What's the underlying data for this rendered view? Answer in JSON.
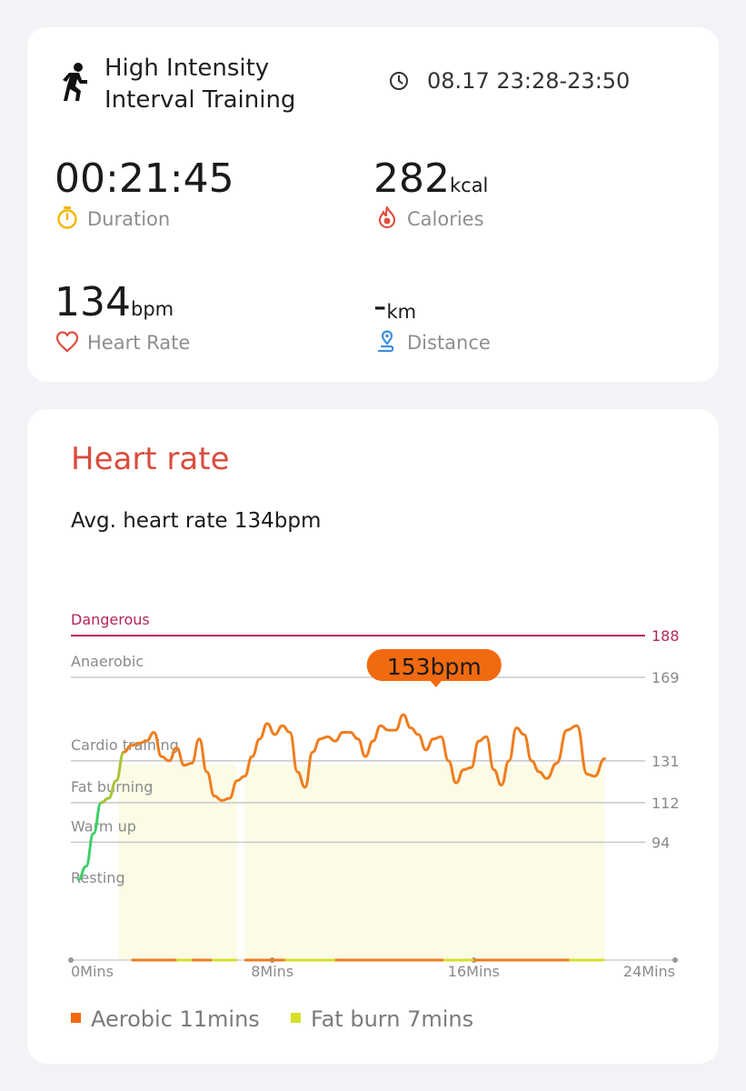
{
  "summary": {
    "workout_name": "High Intensity Interval Training",
    "time_range": "08.17 23:28-23:50",
    "duration": {
      "value": "00:21:45",
      "label": "Duration"
    },
    "calories": {
      "value": "282",
      "unit": "kcal",
      "label": "Calories"
    },
    "heart_rate": {
      "value": "134",
      "unit": "bpm",
      "label": "Heart Rate"
    },
    "distance": {
      "value": "-",
      "unit": "km",
      "label": "Distance"
    }
  },
  "heart_rate_section": {
    "title": "Heart rate",
    "avg_text": "Avg. heart rate 134bpm"
  },
  "chart_data": {
    "type": "line",
    "x_unit": "Mins",
    "x_ticks": [
      {
        "value": 0,
        "label": "0Mins"
      },
      {
        "value": 8,
        "label": "8Mins"
      },
      {
        "value": 16,
        "label": "16Mins"
      },
      {
        "value": 24,
        "label": "24Mins"
      }
    ],
    "xlim": [
      0,
      24
    ],
    "ylim": [
      40,
      193
    ],
    "zones": [
      {
        "name": "Dangerous",
        "value": 188,
        "color": "#b3245a"
      },
      {
        "name": "Anaerobic",
        "value": 169,
        "color": "#c8c8c8"
      },
      {
        "name": "Cardio training",
        "value": 131,
        "color": "#c8c8c8"
      },
      {
        "name": "Fat burning",
        "value": 112,
        "color": "#c8c8c8"
      },
      {
        "name": "Warm up",
        "value": 94,
        "color": "#c8c8c8"
      },
      {
        "name": "Resting",
        "value": null,
        "color": "#c8c8c8"
      }
    ],
    "peak": {
      "x": 14.5,
      "value": 153,
      "label": "153bpm",
      "color": "#f26a10"
    },
    "series": [
      {
        "x": [
          0.3,
          0.6,
          0.9,
          1.2,
          1.5,
          1.8,
          2.1,
          2.4,
          2.7,
          3.0,
          3.3,
          3.6,
          3.9,
          4.2,
          4.5,
          4.8,
          5.1,
          5.4,
          5.7,
          6.0,
          6.3,
          6.6,
          6.9,
          7.2,
          7.5,
          7.8,
          8.1,
          8.4,
          8.7,
          9.0,
          9.3,
          9.6,
          9.9,
          10.2,
          10.5,
          10.8,
          11.1,
          11.4,
          11.7,
          12.0,
          12.3,
          12.6,
          12.9,
          13.2,
          13.5,
          13.8,
          14.1,
          14.4,
          14.7,
          15.0,
          15.3,
          15.6,
          15.9,
          16.2,
          16.5,
          16.8,
          17.1,
          17.4,
          17.7,
          18.0,
          18.3,
          18.6,
          18.9,
          19.3,
          19.7,
          20.1,
          20.5,
          20.8,
          21.2
        ],
        "y": [
          77,
          83,
          98,
          112,
          114,
          122,
          135,
          138,
          139,
          140,
          144,
          133,
          131,
          137,
          129,
          130,
          141,
          126,
          115,
          113,
          114,
          122,
          124,
          133,
          141,
          148,
          143,
          147,
          144,
          126,
          119,
          135,
          141,
          142,
          140,
          144,
          144,
          141,
          133,
          140,
          147,
          145,
          145,
          152,
          146,
          143,
          136,
          141,
          142,
          131,
          121,
          127,
          128,
          140,
          142,
          127,
          120,
          131,
          146,
          143,
          131,
          126,
          123,
          130,
          145,
          147,
          125,
          124,
          132
        ],
        "zone_colors": [
          {
            "from": 0,
            "to": 1.5,
            "color": "#3fcf6a"
          },
          {
            "from": 1.5,
            "to": 2.4,
            "color": "#a9c436"
          },
          {
            "from": 2.4,
            "to": 22,
            "color": "#ef7d1d"
          }
        ]
      }
    ],
    "shaded_regions": [
      {
        "from": 1.9,
        "to": 6.6
      },
      {
        "from": 6.9,
        "to": 21.2
      }
    ],
    "legend": [
      {
        "name": "Aerobic",
        "text": "Aerobic 11mins",
        "color": "#f26a10"
      },
      {
        "name": "Fat burn",
        "text": "Fat burn 7mins",
        "color": "#d6e02b"
      }
    ],
    "legend_position": "bottom-left",
    "grid": false
  }
}
